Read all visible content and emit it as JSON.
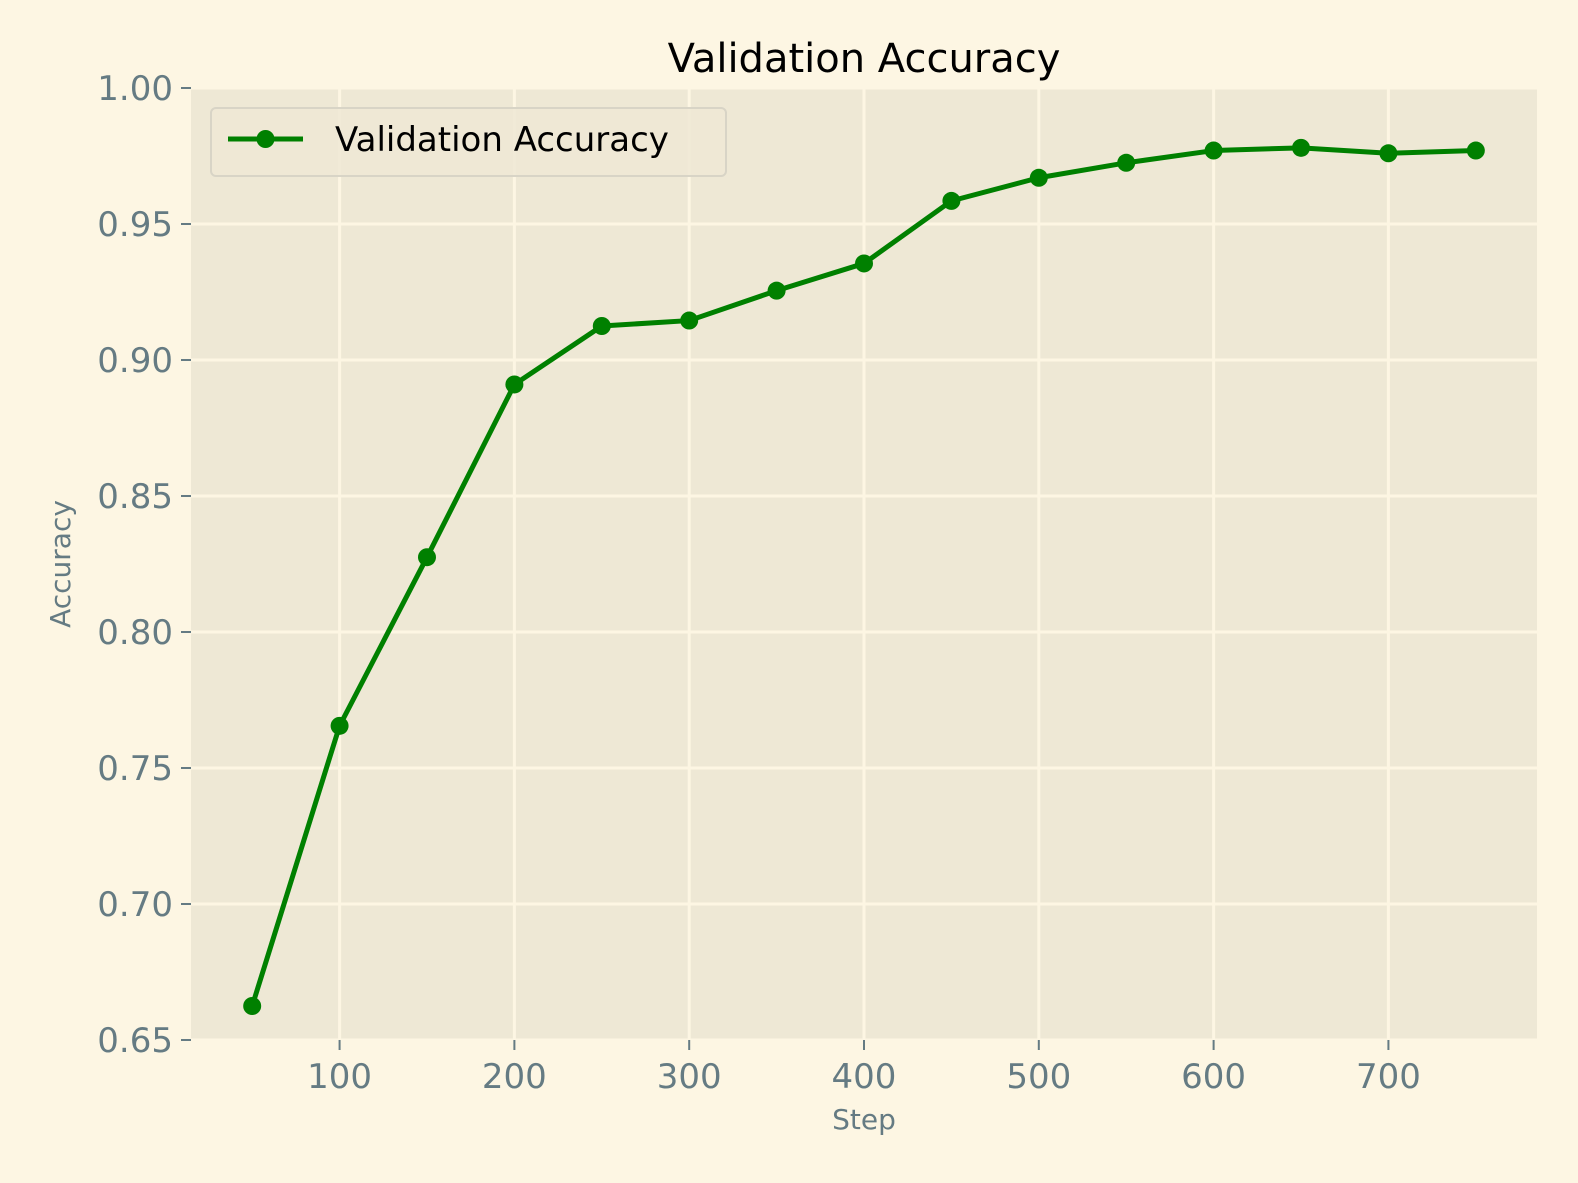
{
  "colors": {
    "figure_background": "#fdf6e3",
    "plot_background": "#eee8d5",
    "grid": "#fdf6e3",
    "line": "#008000",
    "tick_text": "#657b83",
    "title_text": "#000000"
  },
  "chart_data": {
    "type": "line",
    "title": "Validation Accuracy",
    "xlabel": "Step",
    "ylabel": "Accuracy",
    "xlim": [
      15,
      785
    ],
    "ylim": [
      0.65,
      1.0
    ],
    "x_ticks": [
      100,
      200,
      300,
      400,
      500,
      600,
      700
    ],
    "x_tick_labels": [
      "100",
      "200",
      "300",
      "400",
      "500",
      "600",
      "700"
    ],
    "y_ticks": [
      0.65,
      0.7,
      0.75,
      0.8,
      0.85,
      0.9,
      0.95,
      1.0
    ],
    "y_tick_labels": [
      "0.65",
      "0.70",
      "0.75",
      "0.80",
      "0.85",
      "0.90",
      "0.95",
      "1.00"
    ],
    "grid": true,
    "legend": "upper-left",
    "series": [
      {
        "name": "Validation Accuracy",
        "marker": "circle",
        "x": [
          50,
          100,
          150,
          200,
          250,
          300,
          350,
          400,
          450,
          500,
          550,
          600,
          650,
          700,
          750
        ],
        "y": [
          0.6625,
          0.7655,
          0.8275,
          0.891,
          0.9125,
          0.9145,
          0.9255,
          0.9355,
          0.9585,
          0.967,
          0.9725,
          0.977,
          0.978,
          0.976,
          0.977
        ]
      }
    ]
  }
}
